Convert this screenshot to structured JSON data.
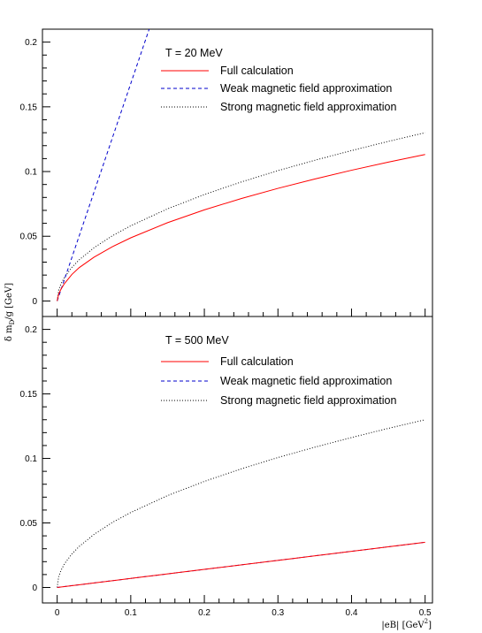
{
  "chart_data": [
    {
      "type": "line",
      "panel": "top",
      "legend_title": "T = 20 MeV",
      "legend_position": "top-right",
      "xlim": [
        -0.02,
        0.51
      ],
      "ylim": [
        -0.012,
        0.21
      ],
      "xticks": [
        "0",
        "0.1",
        "0.2",
        "0.3",
        "0.4",
        "0.5"
      ],
      "yticks": [
        "0",
        "0.05",
        "0.1",
        "0.15",
        "0.2"
      ],
      "series": [
        {
          "name": "Full calculation",
          "color": "#ff0000",
          "style": "solid",
          "x": [
            0,
            0.002,
            0.005,
            0.01,
            0.02,
            0.03,
            0.05,
            0.075,
            0.1,
            0.15,
            0.2,
            0.25,
            0.3,
            0.35,
            0.4,
            0.45,
            0.5
          ],
          "y": [
            0,
            0.0052,
            0.0089,
            0.0135,
            0.0205,
            0.0258,
            0.0338,
            0.0419,
            0.0488,
            0.0605,
            0.0704,
            0.0791,
            0.087,
            0.0942,
            0.101,
            0.1073,
            0.1132
          ]
        },
        {
          "name": "Weak magnetic field approximation",
          "color": "#0000cc",
          "style": "dashed",
          "x": [
            0,
            0.05,
            0.1,
            0.12,
            0.125
          ],
          "y": [
            0,
            0.084,
            0.168,
            0.2016,
            0.21
          ]
        },
        {
          "name": "Strong magnetic field approximation",
          "color": "#000000",
          "style": "dotted",
          "x": [
            0,
            0.002,
            0.005,
            0.01,
            0.02,
            0.03,
            0.05,
            0.075,
            0.1,
            0.15,
            0.2,
            0.25,
            0.3,
            0.35,
            0.4,
            0.45,
            0.5
          ],
          "y": [
            0,
            0.0082,
            0.013,
            0.0184,
            0.026,
            0.0318,
            0.0411,
            0.0504,
            0.0581,
            0.0712,
            0.0822,
            0.0919,
            0.1007,
            0.1087,
            0.1162,
            0.1233,
            0.13
          ]
        }
      ]
    },
    {
      "type": "line",
      "panel": "bottom",
      "legend_title": "T = 500 MeV",
      "legend_position": "top-right",
      "xlim": [
        -0.02,
        0.51
      ],
      "ylim": [
        -0.012,
        0.21
      ],
      "xticks": [
        "0",
        "0.1",
        "0.2",
        "0.3",
        "0.4",
        "0.5"
      ],
      "yticks": [
        "0",
        "0.05",
        "0.1",
        "0.15",
        "0.2"
      ],
      "xlabel": "|eB| [GeV",
      "xlabel_sup": "2",
      "xlabel_end": "]",
      "ylabel": "δ m",
      "ylabel_sub": "D",
      "ylabel_end": "/g [GeV]",
      "series": [
        {
          "name": "Full calculation",
          "color": "#ff0000",
          "style": "solid",
          "x": [
            0,
            0.1,
            0.2,
            0.3,
            0.4,
            0.5
          ],
          "y": [
            0,
            0.007,
            0.014,
            0.021,
            0.028,
            0.035
          ]
        },
        {
          "name": "Weak magnetic field approximation",
          "color": "#0000cc",
          "style": "dashed",
          "x": [
            0,
            0.1,
            0.2,
            0.3,
            0.4,
            0.5
          ],
          "y": [
            0,
            0.007,
            0.014,
            0.021,
            0.028,
            0.035
          ]
        },
        {
          "name": "Strong magnetic field approximation",
          "color": "#000000",
          "style": "dotted",
          "x": [
            0,
            0.002,
            0.005,
            0.01,
            0.02,
            0.03,
            0.05,
            0.075,
            0.1,
            0.15,
            0.2,
            0.25,
            0.3,
            0.35,
            0.4,
            0.45,
            0.5
          ],
          "y": [
            0,
            0.0082,
            0.013,
            0.0184,
            0.026,
            0.0318,
            0.0411,
            0.0504,
            0.0581,
            0.0712,
            0.0822,
            0.0919,
            0.1007,
            0.1087,
            0.1162,
            0.1233,
            0.13
          ]
        }
      ]
    }
  ]
}
